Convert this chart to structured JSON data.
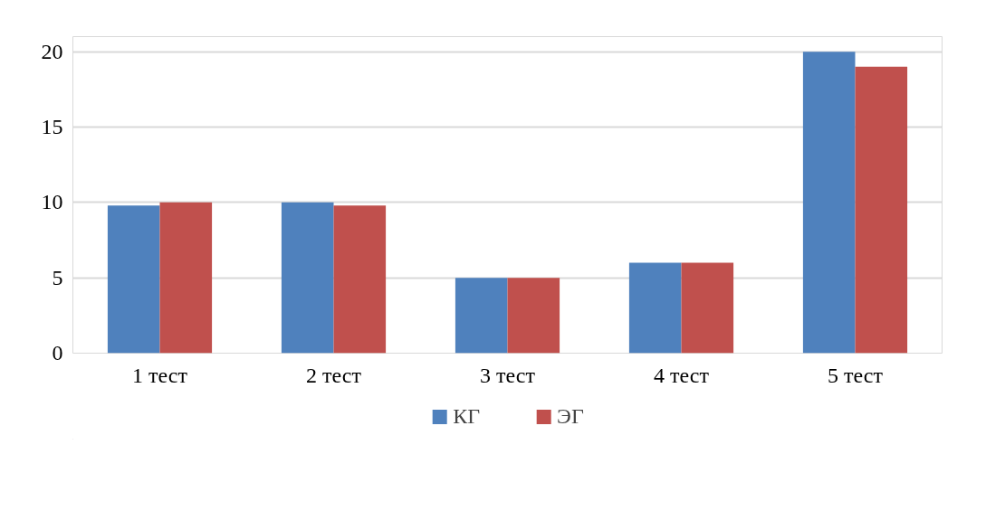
{
  "chart_data": {
    "type": "bar",
    "categories": [
      "1 тест",
      "2 тест",
      "3 тест",
      "4 тест",
      "5 тест"
    ],
    "series": [
      {
        "name": "КГ",
        "color": "#4f81bd",
        "values": [
          9.8,
          10,
          5,
          6,
          20
        ]
      },
      {
        "name": "ЭГ",
        "color": "#c0504d",
        "values": [
          10,
          9.8,
          5,
          6,
          19
        ]
      }
    ],
    "ylim": [
      0,
      21
    ],
    "yticks": [
      0,
      5,
      10,
      15,
      20
    ],
    "grid": "y",
    "legend": "bottom"
  }
}
